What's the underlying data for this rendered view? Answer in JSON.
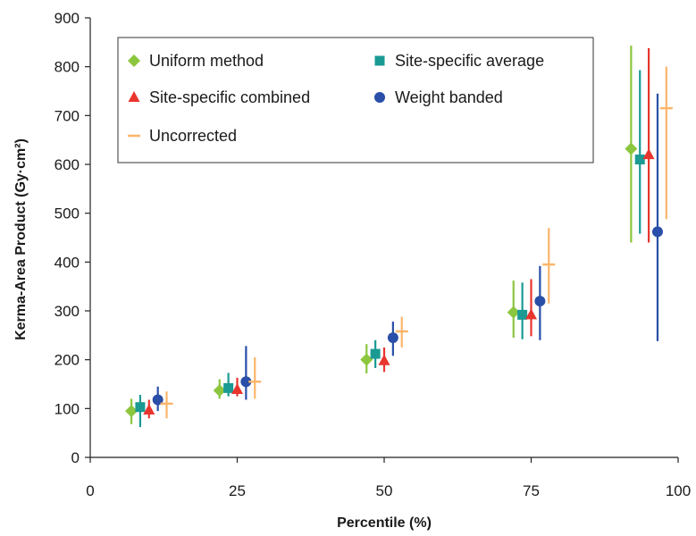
{
  "chart_data": {
    "type": "scatter",
    "xlabel": "Percentile (%)",
    "ylabel": "Kerma-Area Product (Gy·cm²)",
    "xlim": [
      0,
      100
    ],
    "ylim": [
      0,
      900
    ],
    "x_ticks": [
      0,
      25,
      50,
      75,
      100
    ],
    "y_ticks": [
      0,
      100,
      200,
      300,
      400,
      500,
      600,
      700,
      800,
      900
    ],
    "x_tick_labels": [
      "0",
      "25",
      "50",
      "75",
      "100"
    ],
    "y_tick_labels": [
      "0",
      "100",
      "200",
      "300",
      "400",
      "500",
      "600",
      "700",
      "800",
      "900"
    ],
    "grid": false,
    "legend_position": "top",
    "series": [
      {
        "name": "Uniform method",
        "color": "#8cc63f",
        "marker": "diamond",
        "points": [
          {
            "x": 7,
            "y": 95,
            "low": 68,
            "high": 120
          },
          {
            "x": 22,
            "y": 137,
            "low": 120,
            "high": 160
          },
          {
            "x": 47,
            "y": 200,
            "low": 172,
            "high": 232
          },
          {
            "x": 72,
            "y": 297,
            "low": 245,
            "high": 362
          },
          {
            "x": 92,
            "y": 632,
            "low": 440,
            "high": 843
          }
        ]
      },
      {
        "name": "Site-specific average",
        "color": "#1a9a93",
        "marker": "square",
        "points": [
          {
            "x": 8.5,
            "y": 103,
            "low": 62,
            "high": 128
          },
          {
            "x": 23.5,
            "y": 142,
            "low": 125,
            "high": 173
          },
          {
            "x": 48.5,
            "y": 212,
            "low": 183,
            "high": 240
          },
          {
            "x": 73.5,
            "y": 292,
            "low": 242,
            "high": 358
          },
          {
            "x": 93.5,
            "y": 610,
            "low": 458,
            "high": 793
          }
        ]
      },
      {
        "name": "Site-specific combined",
        "color": "#e8362e",
        "marker": "triangle",
        "points": [
          {
            "x": 10,
            "y": 97,
            "low": 80,
            "high": 118
          },
          {
            "x": 25,
            "y": 139,
            "low": 125,
            "high": 163
          },
          {
            "x": 50,
            "y": 198,
            "low": 175,
            "high": 225
          },
          {
            "x": 75,
            "y": 292,
            "low": 248,
            "high": 365
          },
          {
            "x": 95,
            "y": 620,
            "low": 440,
            "high": 838
          }
        ]
      },
      {
        "name": "Weight banded",
        "color": "#2a4fa8",
        "marker": "circle",
        "points": [
          {
            "x": 11.5,
            "y": 118,
            "low": 95,
            "high": 145
          },
          {
            "x": 26.5,
            "y": 155,
            "low": 118,
            "high": 228
          },
          {
            "x": 51.5,
            "y": 245,
            "low": 208,
            "high": 278
          },
          {
            "x": 76.5,
            "y": 320,
            "low": 240,
            "high": 392
          },
          {
            "x": 96.5,
            "y": 462,
            "low": 238,
            "high": 745
          }
        ]
      },
      {
        "name": "Uncorrected",
        "color": "#fbb56b",
        "marker": "dash",
        "points": [
          {
            "x": 13,
            "y": 110,
            "low": 80,
            "high": 135
          },
          {
            "x": 28,
            "y": 155,
            "low": 120,
            "high": 205
          },
          {
            "x": 53,
            "y": 258,
            "low": 225,
            "high": 288
          },
          {
            "x": 78,
            "y": 395,
            "low": 315,
            "high": 470
          },
          {
            "x": 98,
            "y": 715,
            "low": 488,
            "high": 800
          }
        ]
      }
    ]
  }
}
